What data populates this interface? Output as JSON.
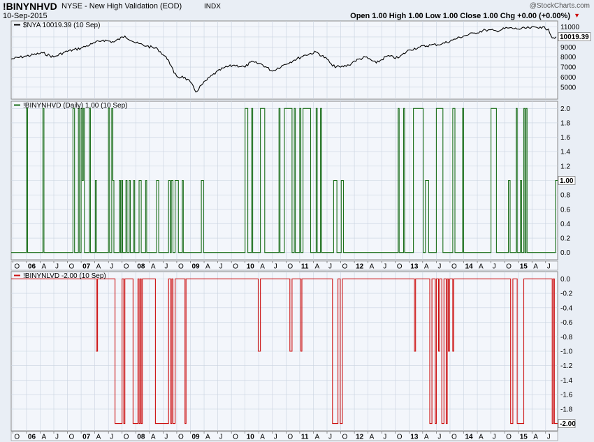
{
  "header": {
    "symbol": "!BINYNHVD",
    "description": "NYSE - New High Validation (EOD)",
    "exchange": "INDX",
    "date": "10-Sep-2015",
    "quote": "Open 1.00  High 1.00  Low 1.00  Close 1.00  Chg +0.00 (+0.00%)",
    "quote_arrow": "▼",
    "watermark": "@StockCharts.com"
  },
  "colors": {
    "nya_line": "#000000",
    "nhvd_line": "#1a6e1a",
    "nlvd_line": "#cc1111",
    "panel_bg": "#f3f6fb",
    "grid": "#c9d3e0"
  },
  "x_axis": {
    "labels": [
      {
        "t": 2005.75,
        "text": "O"
      },
      {
        "t": 2006.0,
        "text": "06",
        "bold": true
      },
      {
        "t": 2006.25,
        "text": "A"
      },
      {
        "t": 2006.5,
        "text": "J"
      },
      {
        "t": 2006.75,
        "text": "O"
      },
      {
        "t": 2007.0,
        "text": "07",
        "bold": true
      },
      {
        "t": 2007.25,
        "text": "A"
      },
      {
        "t": 2007.5,
        "text": "J"
      },
      {
        "t": 2007.75,
        "text": "O"
      },
      {
        "t": 2008.0,
        "text": "08",
        "bold": true
      },
      {
        "t": 2008.25,
        "text": "A"
      },
      {
        "t": 2008.5,
        "text": "J"
      },
      {
        "t": 2008.75,
        "text": "O"
      },
      {
        "t": 2009.0,
        "text": "09",
        "bold": true
      },
      {
        "t": 2009.25,
        "text": "A"
      },
      {
        "t": 2009.5,
        "text": "J"
      },
      {
        "t": 2009.75,
        "text": "O"
      },
      {
        "t": 2010.0,
        "text": "10",
        "bold": true
      },
      {
        "t": 2010.25,
        "text": "A"
      },
      {
        "t": 2010.5,
        "text": "J"
      },
      {
        "t": 2010.75,
        "text": "O"
      },
      {
        "t": 2011.0,
        "text": "11",
        "bold": true
      },
      {
        "t": 2011.25,
        "text": "A"
      },
      {
        "t": 2011.5,
        "text": "J"
      },
      {
        "t": 2011.75,
        "text": "O"
      },
      {
        "t": 2012.0,
        "text": "12",
        "bold": true
      },
      {
        "t": 2012.25,
        "text": "A"
      },
      {
        "t": 2012.5,
        "text": "J"
      },
      {
        "t": 2012.75,
        "text": "O"
      },
      {
        "t": 2013.0,
        "text": "13",
        "bold": true
      },
      {
        "t": 2013.25,
        "text": "A"
      },
      {
        "t": 2013.5,
        "text": "J"
      },
      {
        "t": 2013.75,
        "text": "O"
      },
      {
        "t": 2014.0,
        "text": "14",
        "bold": true
      },
      {
        "t": 2014.25,
        "text": "A"
      },
      {
        "t": 2014.5,
        "text": "J"
      },
      {
        "t": 2014.75,
        "text": "O"
      },
      {
        "t": 2015.0,
        "text": "15",
        "bold": true
      },
      {
        "t": 2015.25,
        "text": "A"
      },
      {
        "t": 2015.5,
        "text": "J"
      }
    ],
    "range": [
      2005.72,
      2015.72
    ]
  },
  "chart_data": [
    {
      "type": "line",
      "legend": "$NYA 10019.39 (10 Sep)",
      "last_value_label": "10019.39",
      "last_value": 10019.39,
      "ylim": [
        3800,
        11600
      ],
      "yticks": [
        5000,
        6000,
        7000,
        8000,
        9000,
        10000,
        11000
      ],
      "grid": true,
      "x": [
        2005.72,
        2006.0,
        2006.3,
        2006.5,
        2006.7,
        2007.0,
        2007.2,
        2007.4,
        2007.6,
        2007.8,
        2008.0,
        2008.2,
        2008.4,
        2008.6,
        2008.7,
        2008.8,
        2008.85,
        2009.0,
        2009.1,
        2009.2,
        2009.4,
        2009.6,
        2009.8,
        2010.0,
        2010.1,
        2010.3,
        2010.5,
        2010.7,
        2010.9,
        2011.1,
        2011.3,
        2011.5,
        2011.6,
        2011.75,
        2011.9,
        2012.0,
        2012.2,
        2012.4,
        2012.6,
        2012.8,
        2013.0,
        2013.2,
        2013.4,
        2013.6,
        2013.8,
        2014.0,
        2014.2,
        2014.4,
        2014.6,
        2014.8,
        2015.0,
        2015.2,
        2015.4,
        2015.55,
        2015.62,
        2015.69
      ],
      "y": [
        7800,
        8100,
        8400,
        8000,
        8500,
        8900,
        9300,
        9700,
        9500,
        10100,
        9400,
        9100,
        8800,
        7700,
        6400,
        5900,
        6100,
        5500,
        4500,
        5200,
        6200,
        6900,
        7200,
        7000,
        7500,
        7300,
        6600,
        7200,
        7700,
        8200,
        8500,
        7800,
        7100,
        7000,
        7200,
        7600,
        8000,
        7400,
        8100,
        7900,
        8700,
        9000,
        9200,
        9300,
        9700,
        10100,
        10400,
        10700,
        10600,
        10900,
        10800,
        10900,
        11000,
        10800,
        9900,
        10019
      ]
    },
    {
      "type": "line",
      "step": true,
      "legend": "!BINYNHVD (Daily) 1.00 (10 Sep)",
      "last_value_label": "1.00",
      "last_value": 1.0,
      "ylim": [
        -0.1,
        2.1
      ],
      "yticks": [
        0.0,
        0.2,
        0.4,
        0.6,
        0.8,
        1.0,
        1.2,
        1.4,
        1.6,
        1.8,
        2.0
      ],
      "grid": true,
      "segments": [
        [
          2005.72,
          0
        ],
        [
          2006.0,
          2
        ],
        [
          2006.02,
          0
        ],
        [
          2006.3,
          2
        ],
        [
          2006.32,
          0
        ],
        [
          2006.85,
          2
        ],
        [
          2006.88,
          0
        ],
        [
          2006.95,
          2
        ],
        [
          2006.97,
          0
        ],
        [
          2007.0,
          2
        ],
        [
          2007.02,
          1
        ],
        [
          2007.04,
          2
        ],
        [
          2007.06,
          0
        ],
        [
          2007.15,
          2
        ],
        [
          2007.17,
          0
        ],
        [
          2007.26,
          1
        ],
        [
          2007.28,
          0
        ],
        [
          2007.5,
          2
        ],
        [
          2007.52,
          0
        ],
        [
          2007.56,
          2
        ],
        [
          2007.58,
          1
        ],
        [
          2007.6,
          0
        ],
        [
          2007.7,
          1
        ],
        [
          2007.72,
          0
        ],
        [
          2007.74,
          1
        ],
        [
          2007.76,
          0
        ],
        [
          2007.82,
          1
        ],
        [
          2007.84,
          0
        ],
        [
          2007.88,
          1
        ],
        [
          2007.9,
          0
        ],
        [
          2007.96,
          1
        ],
        [
          2007.98,
          0
        ],
        [
          2008.06,
          1
        ],
        [
          2008.1,
          0
        ],
        [
          2008.18,
          1
        ],
        [
          2008.2,
          0
        ],
        [
          2008.38,
          1
        ],
        [
          2008.42,
          0
        ],
        [
          2008.6,
          1
        ],
        [
          2008.63,
          0
        ],
        [
          2008.65,
          1
        ],
        [
          2008.68,
          0
        ],
        [
          2008.72,
          1
        ],
        [
          2008.78,
          0
        ],
        [
          2008.85,
          1
        ],
        [
          2008.87,
          0
        ],
        [
          2009.2,
          1
        ],
        [
          2009.24,
          0
        ],
        [
          2010.0,
          2
        ],
        [
          2010.05,
          0
        ],
        [
          2010.12,
          2
        ],
        [
          2010.14,
          0
        ],
        [
          2010.28,
          2
        ],
        [
          2010.36,
          0
        ],
        [
          2010.62,
          2
        ],
        [
          2010.64,
          0
        ],
        [
          2010.72,
          2
        ],
        [
          2010.86,
          0
        ],
        [
          2010.9,
          2
        ],
        [
          2010.92,
          0
        ],
        [
          2011.0,
          2
        ],
        [
          2011.02,
          0
        ],
        [
          2011.06,
          2
        ],
        [
          2011.2,
          0
        ],
        [
          2011.3,
          2
        ],
        [
          2011.32,
          0
        ],
        [
          2011.38,
          2
        ],
        [
          2011.4,
          0
        ],
        [
          2011.62,
          1
        ],
        [
          2011.68,
          0
        ],
        [
          2011.76,
          1
        ],
        [
          2011.8,
          0
        ],
        [
          2012.8,
          2
        ],
        [
          2012.82,
          0
        ],
        [
          2012.9,
          2
        ],
        [
          2012.92,
          0
        ],
        [
          2013.08,
          2
        ],
        [
          2013.26,
          0
        ],
        [
          2013.3,
          1
        ],
        [
          2013.36,
          0
        ],
        [
          2013.5,
          2
        ],
        [
          2013.62,
          0
        ],
        [
          2013.8,
          2
        ],
        [
          2013.84,
          0
        ],
        [
          2013.98,
          2
        ],
        [
          2014.0,
          0
        ],
        [
          2014.5,
          2
        ],
        [
          2014.6,
          0
        ],
        [
          2014.82,
          1
        ],
        [
          2014.85,
          0
        ],
        [
          2014.96,
          2
        ],
        [
          2014.98,
          0
        ],
        [
          2015.04,
          1
        ],
        [
          2015.06,
          0
        ],
        [
          2015.1,
          2
        ],
        [
          2015.12,
          0
        ],
        [
          2015.14,
          2
        ],
        [
          2015.16,
          0
        ],
        [
          2015.68,
          1
        ],
        [
          2015.72,
          1
        ]
      ]
    },
    {
      "type": "line",
      "step": true,
      "legend": "!BINYNLVD -2.00 (10 Sep)",
      "last_value_label": "-2.00",
      "last_value": -2.0,
      "ylim": [
        -2.1,
        0.1
      ],
      "yticks": [
        0.0,
        -0.2,
        -0.4,
        -0.6,
        -0.8,
        -1.0,
        -1.2,
        -1.4,
        -1.6,
        -1.8
      ],
      "grid": true,
      "segments": [
        [
          2005.72,
          0
        ],
        [
          2007.28,
          -1
        ],
        [
          2007.3,
          0
        ],
        [
          2007.62,
          -2
        ],
        [
          2007.75,
          0
        ],
        [
          2007.78,
          -2
        ],
        [
          2007.8,
          0
        ],
        [
          2007.95,
          -2
        ],
        [
          2008.04,
          0
        ],
        [
          2008.06,
          -2
        ],
        [
          2008.08,
          0
        ],
        [
          2008.1,
          -2
        ],
        [
          2008.12,
          0
        ],
        [
          2008.36,
          -2
        ],
        [
          2008.6,
          0
        ],
        [
          2008.64,
          -2
        ],
        [
          2008.66,
          0
        ],
        [
          2008.68,
          -2
        ],
        [
          2008.72,
          0
        ],
        [
          2008.9,
          -2
        ],
        [
          2008.92,
          0
        ],
        [
          2010.24,
          -1
        ],
        [
          2010.28,
          0
        ],
        [
          2010.82,
          -1
        ],
        [
          2010.86,
          0
        ],
        [
          2011.02,
          -1
        ],
        [
          2011.04,
          0
        ],
        [
          2011.6,
          -2
        ],
        [
          2011.7,
          0
        ],
        [
          2011.74,
          -2
        ],
        [
          2011.78,
          0
        ],
        [
          2013.1,
          -1
        ],
        [
          2013.12,
          0
        ],
        [
          2013.38,
          -2
        ],
        [
          2013.42,
          0
        ],
        [
          2013.48,
          -2
        ],
        [
          2013.5,
          0
        ],
        [
          2013.54,
          -1
        ],
        [
          2013.56,
          0
        ],
        [
          2013.6,
          -2
        ],
        [
          2013.64,
          0
        ],
        [
          2013.68,
          -2
        ],
        [
          2013.7,
          0
        ],
        [
          2013.72,
          -1
        ],
        [
          2013.74,
          0
        ],
        [
          2013.8,
          -1
        ],
        [
          2013.82,
          0
        ],
        [
          2014.86,
          -2
        ],
        [
          2014.9,
          0
        ],
        [
          2014.98,
          -2
        ],
        [
          2015.1,
          0
        ],
        [
          2015.62,
          -2
        ],
        [
          2015.64,
          0
        ],
        [
          2015.66,
          -2
        ],
        [
          2015.72,
          -2
        ]
      ]
    }
  ]
}
